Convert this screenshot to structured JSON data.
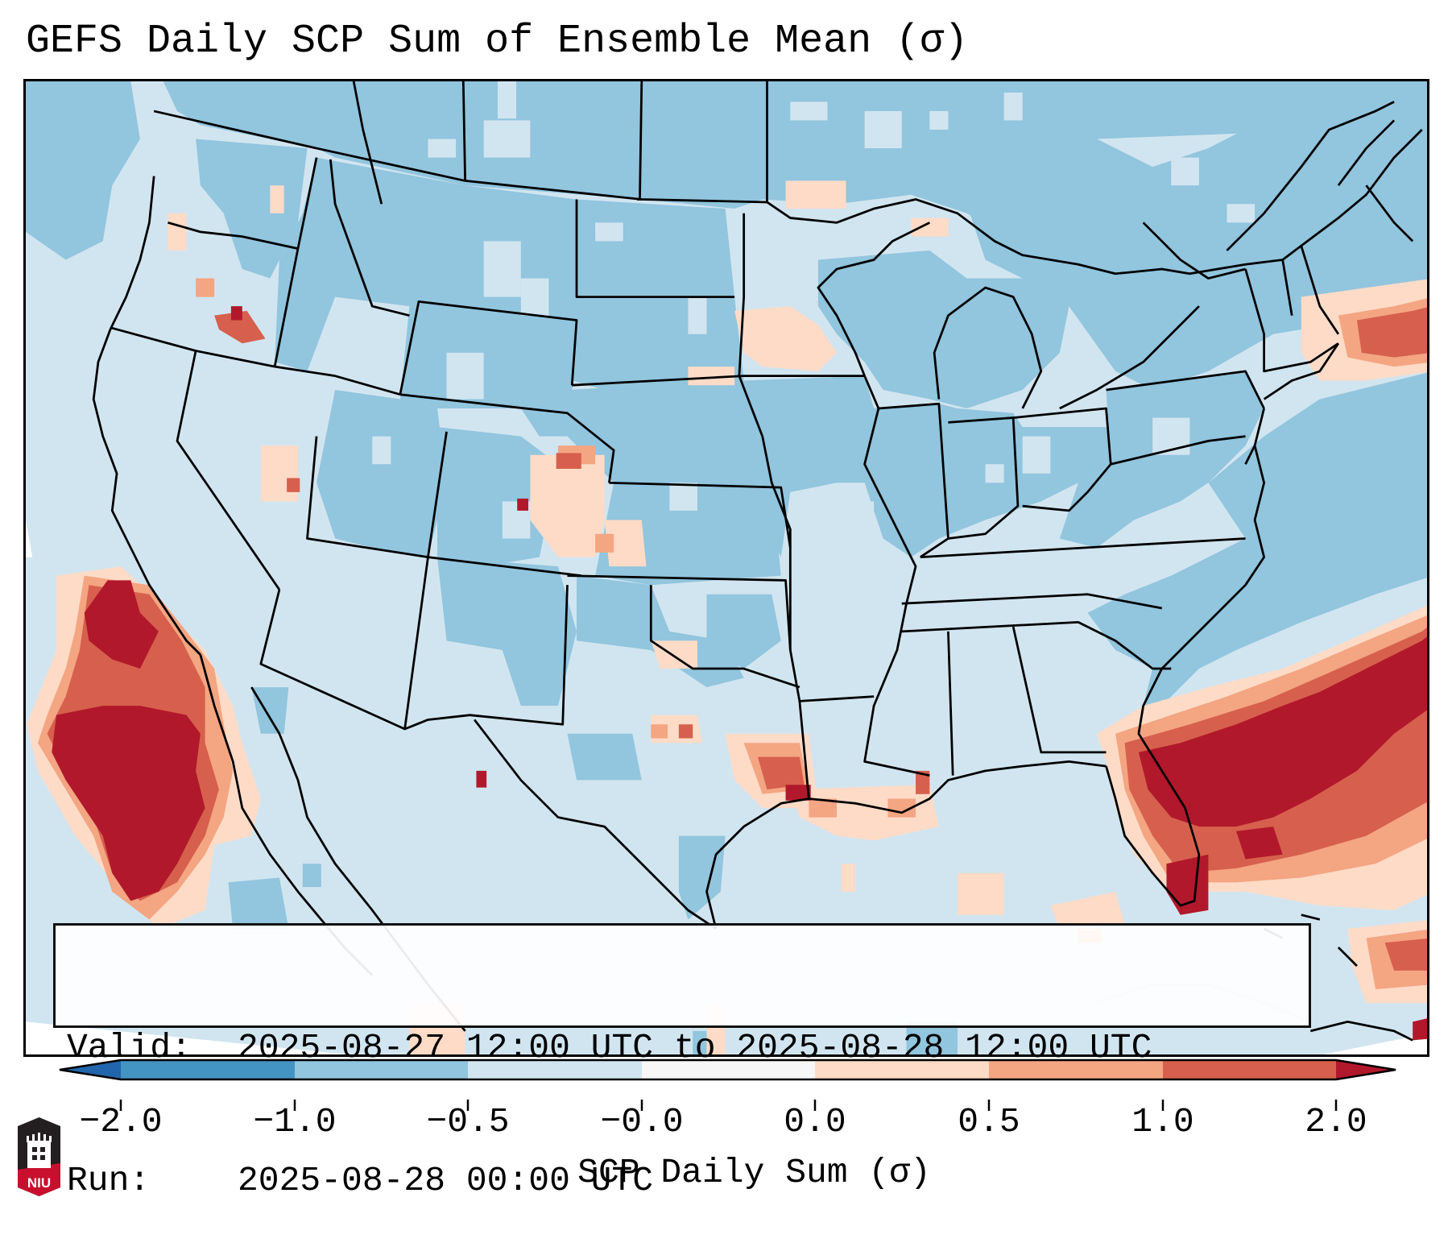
{
  "title": "GEFS Daily SCP Sum of Ensemble Mean (σ)",
  "info_box": {
    "valid_label": "Valid:",
    "valid_value": "2025-08-27 12:00 UTC to 2025-08-28 12:00 UTC",
    "run_label": "Run:",
    "run_value": "2025-08-28 00:00 UTC"
  },
  "colorbar": {
    "label": "SCP Daily Sum (σ)",
    "ticks": [
      "−2.0",
      "−1.0",
      "−0.5",
      "−0.0",
      "0.0",
      "0.5",
      "1.0",
      "2.0"
    ],
    "colors": {
      "under": "#2166ac",
      "bin_neg2_neg1": "#4393c3",
      "bin_neg1_neg05": "#92c5de",
      "bin_neg05_neg0": "#d1e5f0",
      "bin_neg0_0": "#f7f7f7",
      "bin_0_05": "#fddbc7",
      "bin_05_1": "#f4a582",
      "bin_1_2": "#d6604d",
      "over": "#b2182b"
    }
  },
  "logo": {
    "text": "NIU",
    "colors": {
      "shield": "#231f20",
      "band": "#c8102e",
      "building": "#ffffff"
    }
  }
}
